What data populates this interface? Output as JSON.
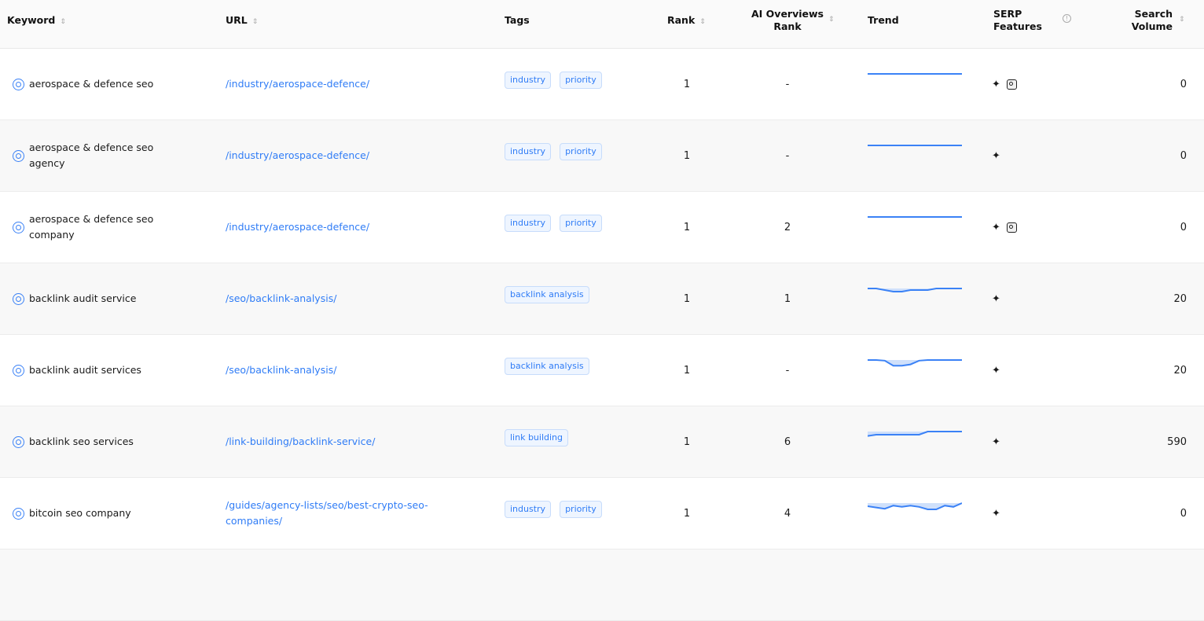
{
  "header": {
    "keyword": "Keyword",
    "url": "URL",
    "tags": "Tags",
    "rank": "Rank",
    "ai_rank_1": "AI Overviews",
    "ai_rank_2": "Rank",
    "trend": "Trend",
    "serp_1": "SERP",
    "serp_2": "Features",
    "volume_1": "Search",
    "volume_2": "Volume"
  },
  "colors": {
    "accent": "#2f7cf6",
    "trend_line": "#3b82f6",
    "trend_fill": "#cfe0fb"
  },
  "rows": [
    {
      "keyword": "aerospace & defence seo",
      "url": "/industry/aerospace-defence/",
      "tags": [
        "industry",
        "priority"
      ],
      "rank": "1",
      "ai_rank": "-",
      "trend": [
        0,
        0,
        0,
        0,
        0,
        0,
        0,
        0,
        0,
        0,
        0,
        0
      ],
      "serp": [
        "sparkle-icon",
        "image-icon"
      ],
      "volume": "0"
    },
    {
      "keyword": "aerospace & defence seo agency",
      "url": "/industry/aerospace-defence/",
      "tags": [
        "industry",
        "priority"
      ],
      "rank": "1",
      "ai_rank": "-",
      "trend": [
        0,
        0,
        0,
        0,
        0,
        0,
        0,
        0,
        0,
        0,
        0,
        0
      ],
      "serp": [
        "sparkle-icon"
      ],
      "volume": "0"
    },
    {
      "keyword": "aerospace & defence seo company",
      "url": "/industry/aerospace-defence/",
      "tags": [
        "industry",
        "priority"
      ],
      "rank": "1",
      "ai_rank": "2",
      "trend": [
        0,
        0,
        0,
        0,
        0,
        0,
        0,
        0,
        0,
        0,
        0,
        0
      ],
      "serp": [
        "sparkle-icon",
        "image-icon"
      ],
      "volume": "0"
    },
    {
      "keyword": "backlink audit service",
      "url": "/seo/backlink-analysis/",
      "tags": [
        "backlink analysis"
      ],
      "rank": "1",
      "ai_rank": "1",
      "trend": [
        0,
        0,
        0.25,
        0.5,
        0.5,
        0.25,
        0.25,
        0.25,
        0,
        0,
        0,
        0
      ],
      "serp": [
        "sparkle-icon"
      ],
      "volume": "20"
    },
    {
      "keyword": "backlink audit services",
      "url": "/seo/backlink-analysis/",
      "tags": [
        "backlink analysis"
      ],
      "rank": "1",
      "ai_rank": "-",
      "trend": [
        0,
        0,
        0.1,
        0.9,
        0.9,
        0.7,
        0.1,
        0,
        0,
        0,
        0,
        0
      ],
      "serp": [
        "sparkle-icon"
      ],
      "volume": "20"
    },
    {
      "keyword": "backlink seo services",
      "url": "/link-building/backlink-service/",
      "tags": [
        "link building"
      ],
      "rank": "1",
      "ai_rank": "6",
      "trend": [
        0.7,
        0.5,
        0.5,
        0.5,
        0.5,
        0.5,
        0.5,
        0,
        0,
        0,
        0,
        0
      ],
      "serp": [
        "sparkle-icon"
      ],
      "volume": "590"
    },
    {
      "keyword": "bitcoin seo company",
      "url": "/guides/agency-lists/seo/best-crypto-seo-companies/",
      "tags": [
        "industry",
        "priority"
      ],
      "rank": "1",
      "ai_rank": "4",
      "trend": [
        0.5,
        0.7,
        0.9,
        0.4,
        0.6,
        0.4,
        0.6,
        1,
        1,
        0.4,
        0.6,
        0
      ],
      "serp": [
        "sparkle-icon"
      ],
      "volume": "0"
    }
  ]
}
